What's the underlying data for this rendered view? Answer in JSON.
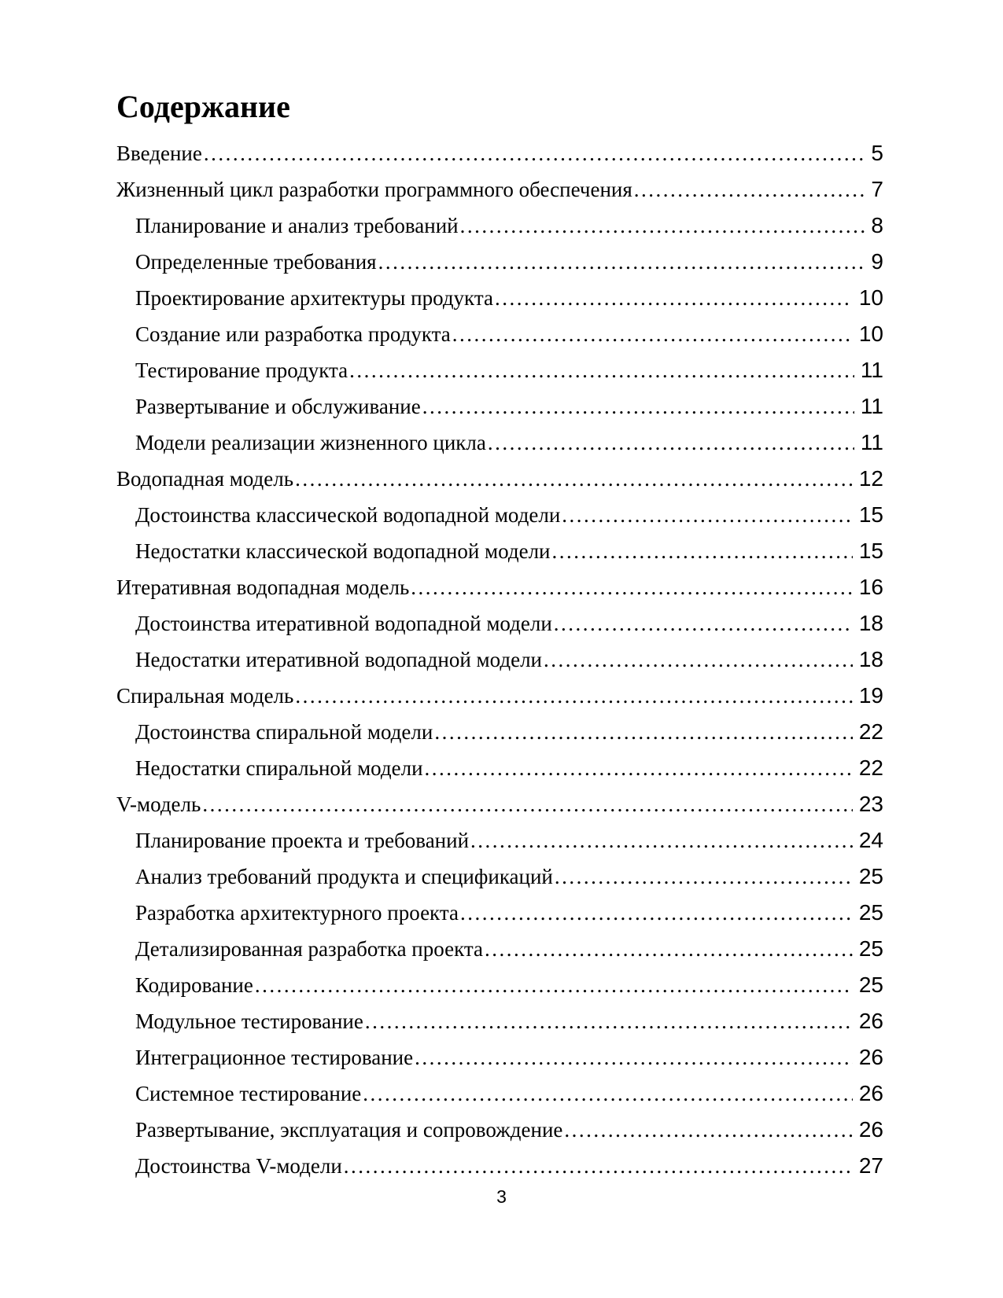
{
  "toc": {
    "title": "Содержание",
    "entries": [
      {
        "label": "Введение",
        "page": "5",
        "indent": 0
      },
      {
        "label": "Жизненный цикл разработки программного обеспечения",
        "page": "7",
        "indent": 0
      },
      {
        "label": "Планирование и анализ требований",
        "page": "8",
        "indent": 1
      },
      {
        "label": "Определенные требования",
        "page": "9",
        "indent": 1
      },
      {
        "label": "Проектирование архитектуры продукта",
        "page": "10",
        "indent": 1
      },
      {
        "label": "Создание или разработка продукта",
        "page": "10",
        "indent": 1
      },
      {
        "label": "Тестирование продукта",
        "page": "11",
        "indent": 1
      },
      {
        "label": "Развертывание и обслуживание",
        "page": "11",
        "indent": 1
      },
      {
        "label": "Модели реализации жизненного цикла",
        "page": "11",
        "indent": 1
      },
      {
        "label": "Водопадная модель",
        "page": "12",
        "indent": 0
      },
      {
        "label": "Достоинства классической водопадной модели",
        "page": "15",
        "indent": 1
      },
      {
        "label": "Недостатки классической водопадной модели",
        "page": "15",
        "indent": 1
      },
      {
        "label": "Итеративная водопадная модель",
        "page": "16",
        "indent": 0
      },
      {
        "label": "Достоинства итеративной водопадной модели",
        "page": "18",
        "indent": 1
      },
      {
        "label": "Недостатки итеративной водопадной модели",
        "page": "18",
        "indent": 1
      },
      {
        "label": "Спиральная модель",
        "page": "19",
        "indent": 0
      },
      {
        "label": "Достоинства спиральной модели",
        "page": "22",
        "indent": 1
      },
      {
        "label": "Недостатки спиральной модели",
        "page": "22",
        "indent": 1
      },
      {
        "label": "V-модель",
        "page": "23",
        "indent": 0
      },
      {
        "label": "Планирование проекта и требований",
        "page": "24",
        "indent": 1
      },
      {
        "label": "Анализ требований продукта и спецификаций",
        "page": "25",
        "indent": 1
      },
      {
        "label": "Разработка архитектурного проекта",
        "page": "25",
        "indent": 1
      },
      {
        "label": "Детализированная разработка проекта",
        "page": "25",
        "indent": 1
      },
      {
        "label": "Кодирование",
        "page": "25",
        "indent": 1
      },
      {
        "label": "Модульное тестирование",
        "page": "26",
        "indent": 1
      },
      {
        "label": "Интеграционное тестирование",
        "page": "26",
        "indent": 1
      },
      {
        "label": "Системное тестирование",
        "page": "26",
        "indent": 1
      },
      {
        "label": "Развертывание, эксплуатация и сопровождение",
        "page": "26",
        "indent": 1
      },
      {
        "label": "Достоинства V-модели",
        "page": "27",
        "indent": 1
      }
    ]
  },
  "footer": {
    "page_number": "3"
  }
}
